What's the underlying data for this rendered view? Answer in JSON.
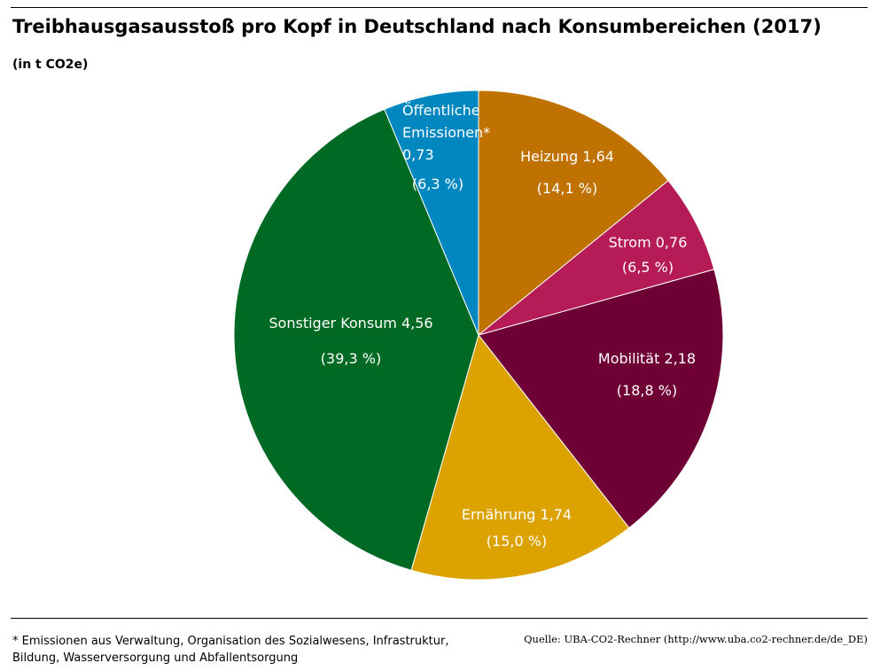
{
  "chart_data": {
    "type": "pie",
    "title": "Treibhausgasausstoß pro Kopf in Deutschland nach Konsumbereichen (2017)",
    "subtitle": "(in t CO2e)",
    "slices": [
      {
        "label_lines": [
          "Heizung 1,64"
        ],
        "value": 1.64,
        "percent": 14.1,
        "percent_label": "(14,1 %)",
        "color": "#BF7200"
      },
      {
        "label_lines": [
          "Strom 0,76"
        ],
        "value": 0.76,
        "percent": 6.5,
        "percent_label": "(6,5 %)",
        "color": "#B51B57"
      },
      {
        "label_lines": [
          "Mobilität 2,18"
        ],
        "value": 2.18,
        "percent": 18.8,
        "percent_label": "(18,8 %)",
        "color": "#6F0035"
      },
      {
        "label_lines": [
          "Ernährung 1,74"
        ],
        "value": 1.74,
        "percent": 15.0,
        "percent_label": "(15,0 %)",
        "color": "#DBA200"
      },
      {
        "label_lines": [
          "Sonstiger Konsum 4,56"
        ],
        "value": 4.56,
        "percent": 39.3,
        "percent_label": "(39,3 %)",
        "color": "#006A24"
      },
      {
        "label_lines": [
          "Öffentliche",
          "Emissionen*",
          "0,73"
        ],
        "value": 0.73,
        "percent": 6.3,
        "percent_label": "(6,3 %)",
        "color": "#0087C0"
      }
    ],
    "footnote": "* Emissionen aus Verwaltung, Organisation des Sozialwesens, Infrastruktur, Bildung, Wasserversorgung und Abfallentsorgung",
    "source": "Quelle: UBA-CO2-Rechner (http://www.uba.co2-rechner.de/de_DE)"
  }
}
